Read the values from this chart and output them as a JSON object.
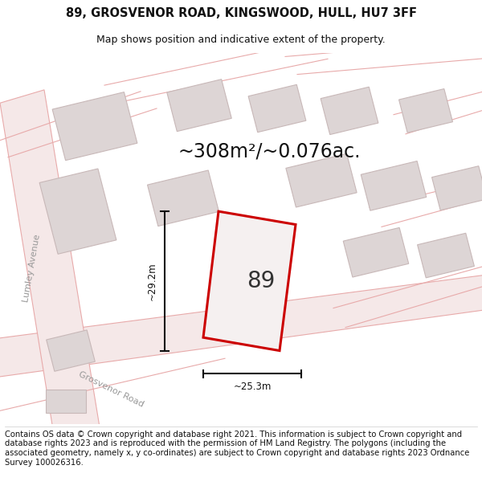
{
  "title": "89, GROSVENOR ROAD, KINGSWOOD, HULL, HU7 3FF",
  "subtitle": "Map shows position and indicative extent of the property.",
  "area_text": "~308m²/~0.076ac.",
  "label_89": "89",
  "dim_width": "~25.3m",
  "dim_height": "~29.2m",
  "street_label_1": "Lumley Avenue",
  "street_label_2": "Grosvenor Road",
  "footer": "Contains OS data © Crown copyright and database right 2021. This information is subject to Crown copyright and database rights 2023 and is reproduced with the permission of HM Land Registry. The polygons (including the associated geometry, namely x, y co-ordinates) are subject to Crown copyright and database rights 2023 Ordnance Survey 100026316.",
  "map_bg": "#faf7f7",
  "road_fill": "#f5e8e8",
  "road_edge": "#e8aaaa",
  "building_fill": "#ddd5d5",
  "building_edge": "#c8b8b8",
  "plot_fill": "#f5f0f0",
  "plot_edge": "#cc0000",
  "dim_color": "#111111",
  "title_fontsize": 10.5,
  "subtitle_fontsize": 9,
  "area_fontsize": 17,
  "label_fontsize": 20,
  "street_fontsize": 8,
  "footer_fontsize": 7.2
}
